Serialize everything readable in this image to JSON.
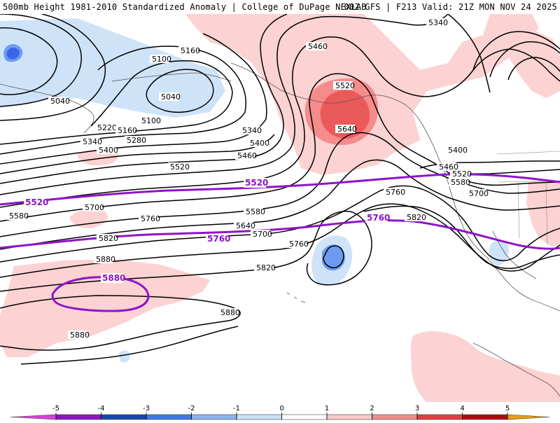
{
  "header": {
    "left_title": "500mb Height 1981-2010 Standardized Anomaly | College of DuPage NEXLAB",
    "right_title": "00Z GFS | F213 Valid: 21Z MON NOV 24 2025"
  },
  "contour_labels": {
    "c5340_ne": "5340",
    "c5160_a": "5160",
    "c5100_a": "5100",
    "c5040_low": "5040",
    "c5040_w": "5040",
    "c5460_alaska": "5460",
    "c5520_peak": "5520",
    "c5640_peak": "5640",
    "c5220": "5220",
    "c5160_b": "5160",
    "c5100_b": "5100",
    "c5340_w": "5340",
    "c5280": "5280",
    "c5340_mid": "5340",
    "c5400_mid": "5400",
    "c5400_w": "5400",
    "c5460_mid": "5460",
    "c5520_mid": "5520",
    "c5580_w": "5580",
    "c5580_mid": "5580",
    "c5700_w": "5700",
    "c5760_w": "5760",
    "c5640_mid": "5640",
    "c5700_mid": "5700",
    "c5760_mid": "5760",
    "c5820_w": "5820",
    "c5880_w": "5880",
    "c5820_mid": "5820",
    "c5760_east": "5760",
    "c5820_east": "5820",
    "c5400_east": "5400",
    "c5460_east": "5460",
    "c5520_east": "5520",
    "c5580_east": "5580",
    "c5700_east": "5700",
    "c5880_s": "5880",
    "c5880_sw": "5880"
  },
  "highlight_labels": {
    "h5520_w": "5520",
    "h5520_mid": "5520",
    "h5760_w": "5760",
    "h5760_e": "5760",
    "h5880": "5880"
  },
  "legend": {
    "ticks": [
      "-5",
      "-4",
      "-3",
      "-2",
      "-1",
      "0",
      "1",
      "2",
      "3",
      "4",
      "5"
    ],
    "colors": [
      "#d246d2",
      "#8c14c8",
      "#1446aa",
      "#3c78e6",
      "#8cb4f0",
      "#c8e1f8",
      "#ffffff",
      "#fac8c8",
      "#f08c8c",
      "#e63c3c",
      "#b40a0a",
      "#e6a014"
    ]
  },
  "colors": {
    "neg_light": "#cfe3f8",
    "neg_mid": "#6e9bee",
    "neg_dark": "#3c64e6",
    "pos_light": "#fcd2d2",
    "pos_mid": "#f58c8c",
    "pos_dark": "#eb5a5a",
    "highlight_contour": "#8f14c8"
  }
}
